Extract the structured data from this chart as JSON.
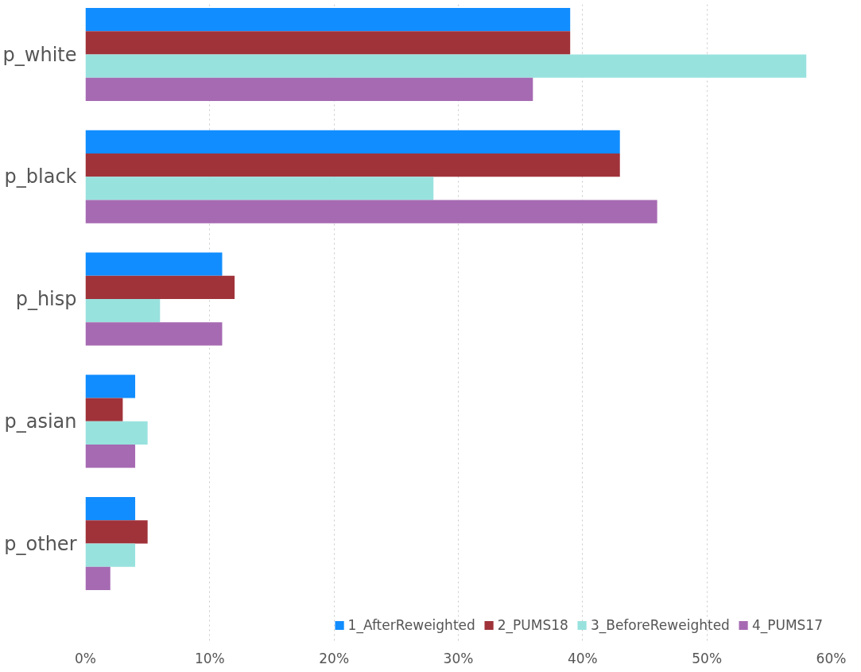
{
  "chart_data": {
    "type": "bar",
    "orientation": "horizontal",
    "categories": [
      "p_white",
      "p_black",
      "p_hisp",
      "p_asian",
      "p_other"
    ],
    "series": [
      {
        "name": "1_AfterReweighted",
        "color": "#118dff",
        "values": [
          39,
          43,
          11,
          4,
          4
        ]
      },
      {
        "name": "2_PUMS18",
        "color": "#a0333a",
        "values": [
          39,
          43,
          12,
          3,
          5
        ]
      },
      {
        "name": "3_BeforeReweighted",
        "color": "#98e2de",
        "values": [
          58,
          28,
          6,
          5,
          4
        ]
      },
      {
        "name": "4_PUMS17",
        "color": "#a66ab2",
        "values": [
          36,
          46,
          11,
          4,
          2
        ]
      }
    ],
    "xlim": [
      0,
      60
    ],
    "xticks": [
      {
        "value": 0,
        "label": "0%"
      },
      {
        "value": 10,
        "label": "10%"
      },
      {
        "value": 20,
        "label": "20%"
      },
      {
        "value": 30,
        "label": "30%"
      },
      {
        "value": 40,
        "label": "40%"
      },
      {
        "value": 50,
        "label": "50%"
      },
      {
        "value": 60,
        "label": "60%"
      }
    ],
    "grid": "x",
    "legend": "bottom right"
  }
}
